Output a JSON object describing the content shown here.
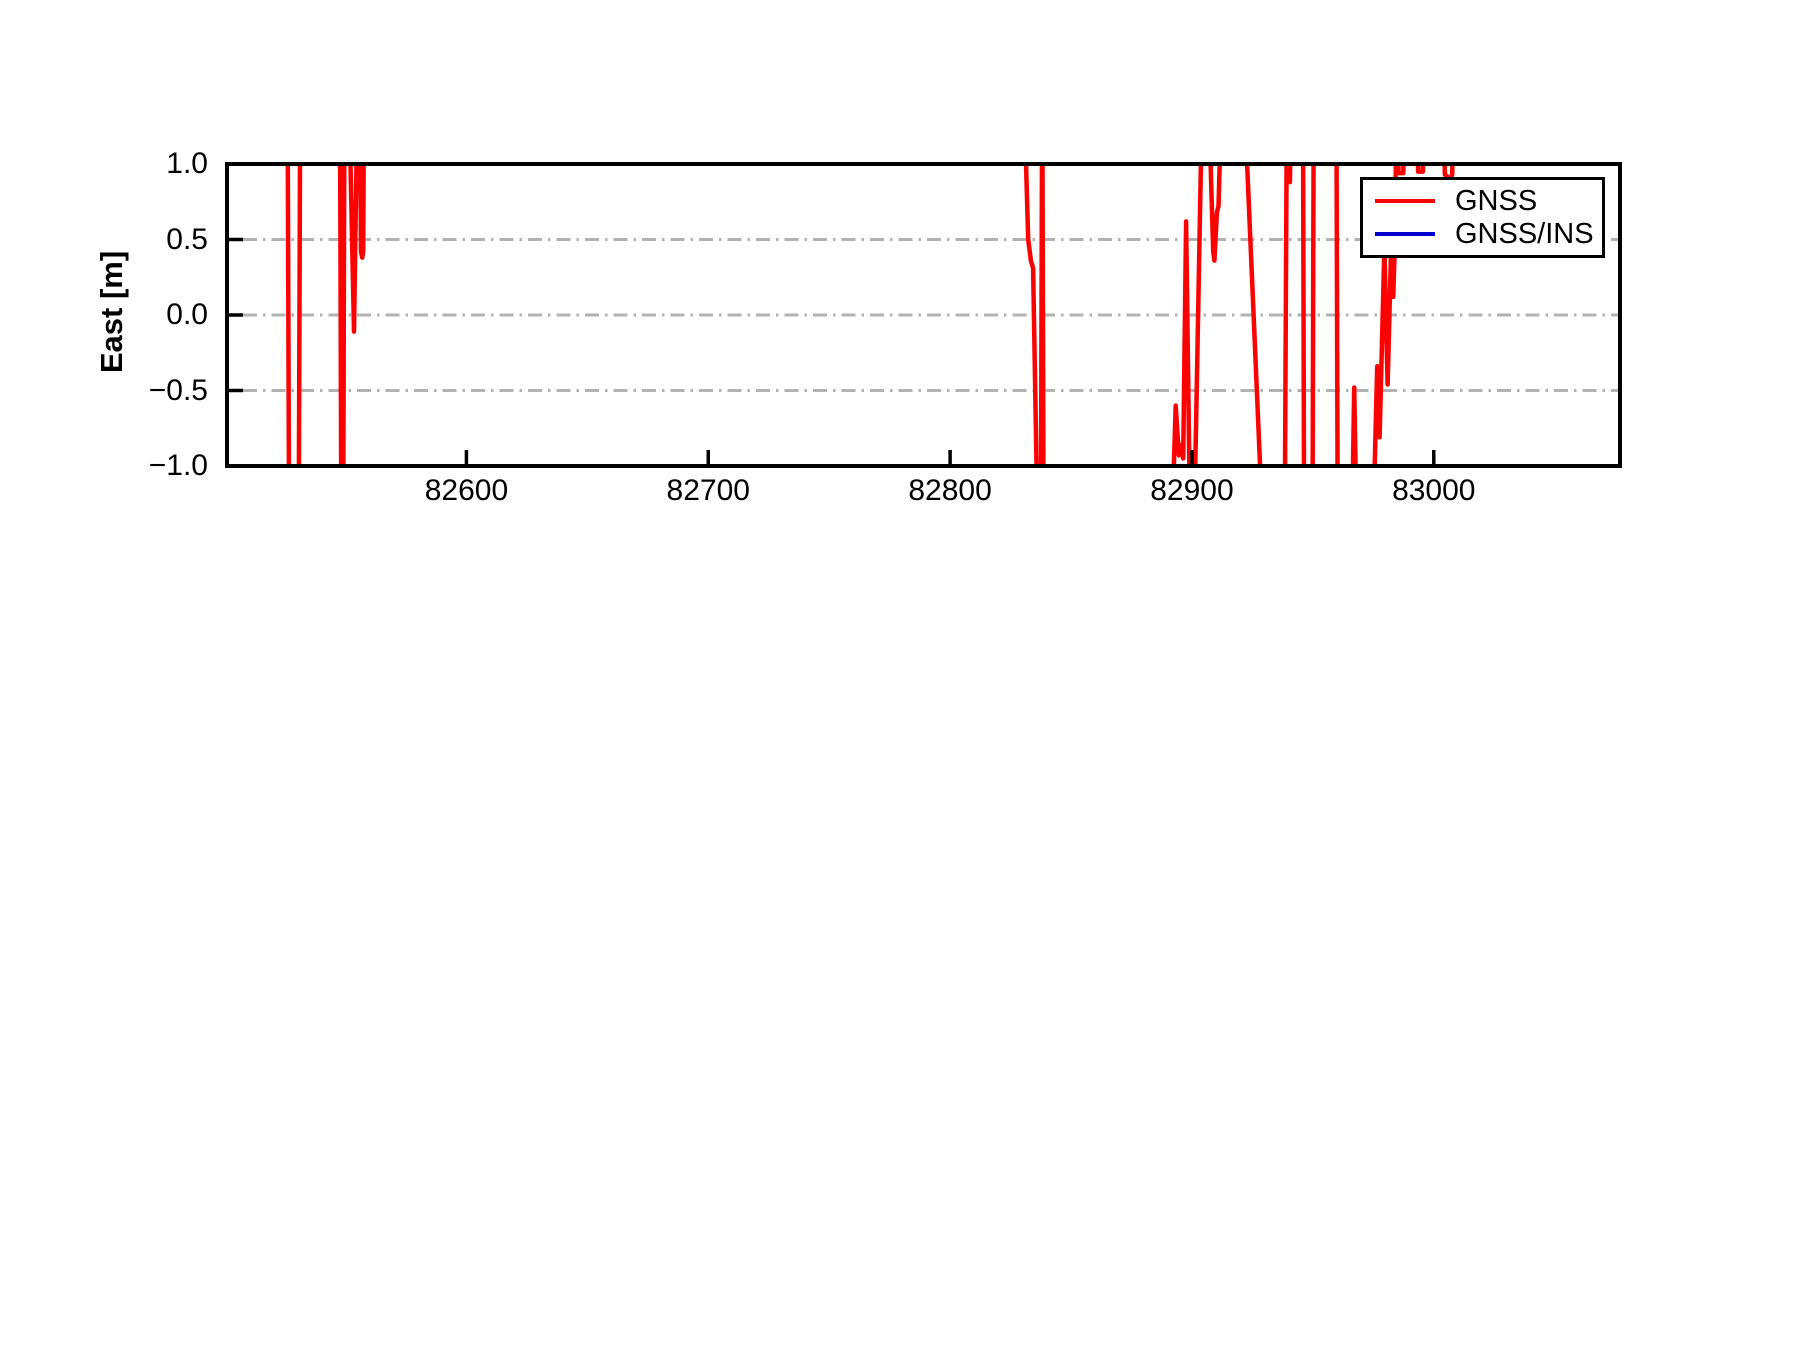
{
  "figure": {
    "background": "#ffffff",
    "text_color": "#000000"
  },
  "chart_data": {
    "type": "line",
    "title": "",
    "xlabel": "",
    "ylabel": "East [m]",
    "xlim": [
      82501,
      83077
    ],
    "ylim": [
      -1.0,
      1.0
    ],
    "x_ticks": [
      82600,
      82700,
      82800,
      82900,
      83000
    ],
    "x_tick_labels": [
      "82600",
      "82700",
      "82800",
      "82900",
      "83000"
    ],
    "y_ticks": [
      1.0,
      0.5,
      0.0,
      -0.5,
      -1.0
    ],
    "y_tick_labels": [
      "1.0",
      "0.5",
      "0.0",
      "−0.5",
      "−1.0"
    ],
    "grid": {
      "show": true,
      "y_values": [
        0.5,
        0.0,
        -0.5
      ],
      "style": "dash-dot",
      "color": "#b2b2b2"
    },
    "legend": {
      "position": "upper-right",
      "entries": [
        {
          "label": "GNSS",
          "color": "#ff0000"
        },
        {
          "label": "GNSS/INS",
          "color": "#0000cd"
        }
      ]
    },
    "series": [
      {
        "name": "GNSS",
        "color": "#ff0000",
        "line_width": 4.5,
        "points": [
          [
            82501.0,
            1.6
          ],
          [
            82526.0,
            1.6
          ],
          [
            82526.7,
            -1.6
          ],
          [
            82530.6,
            -1.6
          ],
          [
            82531.3,
            1.6
          ],
          [
            82547.7,
            1.6
          ],
          [
            82548.3,
            -1.6
          ],
          [
            82549.0,
            -1.6
          ],
          [
            82549.6,
            1.6
          ],
          [
            82551.3,
            1.6
          ],
          [
            82553.5,
            -0.11
          ],
          [
            82555.1,
            1.6
          ],
          [
            82555.9,
            1.6
          ],
          [
            82556.4,
            0.42
          ],
          [
            82556.9,
            0.38
          ],
          [
            82557.3,
            0.42
          ],
          [
            82557.7,
            1.6
          ],
          [
            82830.3,
            1.6
          ],
          [
            82832.3,
            0.5
          ],
          [
            82833.4,
            0.36
          ],
          [
            82834.3,
            0.31
          ],
          [
            82836.4,
            -1.6
          ],
          [
            82837.5,
            -1.6
          ],
          [
            82838.1,
            1.6
          ],
          [
            82838.7,
            -1.6
          ],
          [
            82891.4,
            -1.6
          ],
          [
            82893.3,
            -0.6
          ],
          [
            82894.6,
            -0.93
          ],
          [
            82895.6,
            -0.86
          ],
          [
            82896.4,
            -0.95
          ],
          [
            82897.6,
            0.62
          ],
          [
            82899.4,
            -1.6
          ],
          [
            82900.7,
            -1.6
          ],
          [
            82904.4,
            1.6
          ],
          [
            82906.6,
            1.6
          ],
          [
            82908.8,
            0.42
          ],
          [
            82909.3,
            0.36
          ],
          [
            82910.3,
            0.68
          ],
          [
            82911.0,
            0.72
          ],
          [
            82912.5,
            1.6
          ],
          [
            82921.2,
            1.6
          ],
          [
            82929.8,
            -1.6
          ],
          [
            82938.3,
            -1.6
          ],
          [
            82939.3,
            1.6
          ],
          [
            82940.5,
            0.88
          ],
          [
            82941.2,
            1.6
          ],
          [
            82945.9,
            1.6
          ],
          [
            82946.4,
            -1.6
          ],
          [
            82949.8,
            -1.6
          ],
          [
            82950.4,
            1.6
          ],
          [
            82959.7,
            1.6
          ],
          [
            82960.3,
            -1.6
          ],
          [
            82966.0,
            -1.6
          ],
          [
            82967.1,
            -0.48
          ],
          [
            82968.3,
            -1.6
          ],
          [
            82974.6,
            -1.6
          ],
          [
            82976.6,
            -0.34
          ],
          [
            82977.6,
            -0.81
          ],
          [
            82979.6,
            0.45
          ],
          [
            82980.9,
            -0.46
          ],
          [
            82982.4,
            0.45
          ],
          [
            82983.2,
            0.12
          ],
          [
            82983.9,
            0.45
          ],
          [
            82984.8,
            1.6
          ],
          [
            82985.4,
            0.94
          ],
          [
            82987.4,
            0.94
          ],
          [
            82988.1,
            1.6
          ],
          [
            82992.9,
            1.6
          ],
          [
            82993.5,
            0.95
          ],
          [
            82995.5,
            0.95
          ],
          [
            82996.2,
            1.6
          ],
          [
            83003.8,
            1.6
          ],
          [
            83004.6,
            0.93
          ],
          [
            83006.9,
            0.9
          ],
          [
            83007.6,
            0.93
          ],
          [
            83008.3,
            1.6
          ],
          [
            83077.0,
            1.6
          ]
        ]
      },
      {
        "name": "GNSS/INS",
        "color": "#0000cd",
        "line_width": 4.5,
        "points": []
      }
    ]
  }
}
